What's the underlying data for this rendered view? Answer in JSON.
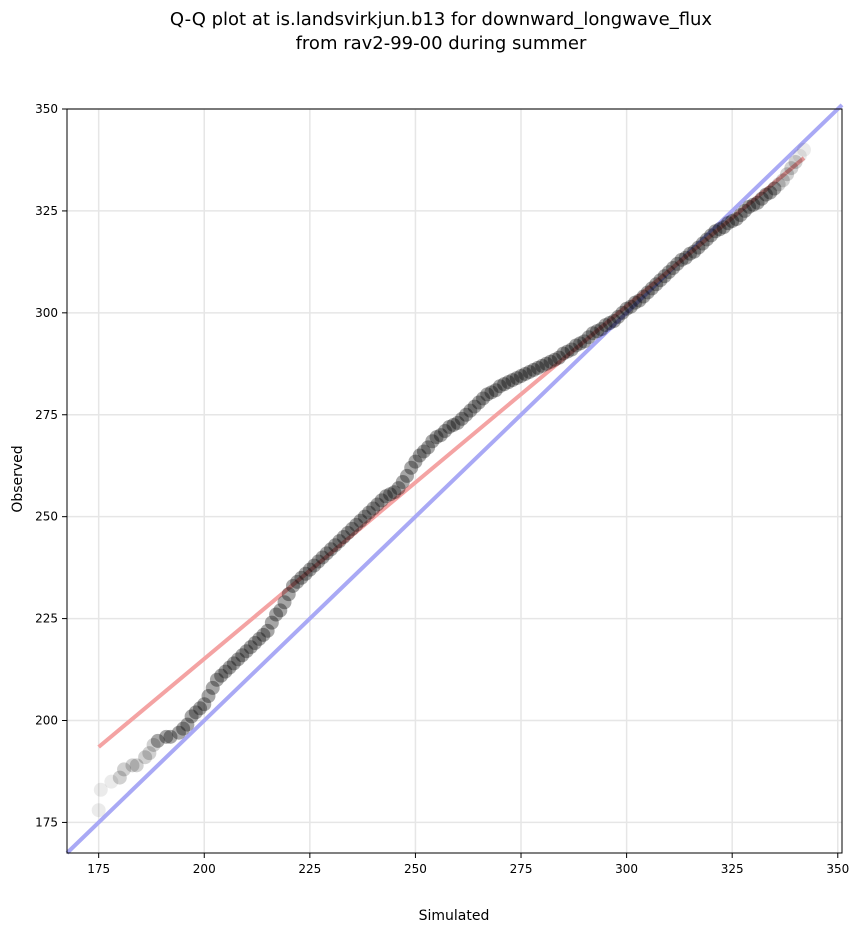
{
  "chart_data": {
    "type": "scatter",
    "title_line1": "Q-Q plot at is.landsvirkjun.b13 for downward_longwave_flux",
    "title_line2": "from rav2-99-00 during summer",
    "xlabel": "Simulated",
    "ylabel": "Observed",
    "xlim": [
      167.5,
      351
    ],
    "ylim": [
      167.5,
      350
    ],
    "xticks": [
      175,
      200,
      225,
      250,
      275,
      300,
      325,
      350
    ],
    "yticks": [
      175,
      200,
      225,
      250,
      275,
      300,
      325,
      350
    ],
    "grid": true,
    "quantile_points": [
      [
        175,
        178
      ],
      [
        175.5,
        183
      ],
      [
        178,
        185
      ],
      [
        180,
        186
      ],
      [
        181,
        188
      ],
      [
        183,
        189
      ],
      [
        184,
        189
      ],
      [
        186,
        191
      ],
      [
        187,
        192
      ],
      [
        188,
        194
      ],
      [
        189,
        195
      ],
      [
        191,
        196
      ],
      [
        192,
        196
      ],
      [
        194,
        197
      ],
      [
        195,
        198
      ],
      [
        196,
        199
      ],
      [
        197,
        201
      ],
      [
        198,
        202
      ],
      [
        199,
        203
      ],
      [
        200,
        204
      ],
      [
        201,
        206
      ],
      [
        202,
        208
      ],
      [
        203,
        210
      ],
      [
        204,
        211
      ],
      [
        205,
        212
      ],
      [
        206,
        213
      ],
      [
        207,
        214
      ],
      [
        208,
        215
      ],
      [
        209,
        216
      ],
      [
        210,
        217
      ],
      [
        211,
        218
      ],
      [
        212,
        219
      ],
      [
        213,
        220
      ],
      [
        214,
        221
      ],
      [
        215,
        222
      ],
      [
        216,
        224
      ],
      [
        217,
        226
      ],
      [
        218,
        227
      ],
      [
        219,
        229
      ],
      [
        220,
        231
      ],
      [
        221,
        233
      ],
      [
        222,
        234
      ],
      [
        223,
        235
      ],
      [
        224,
        236
      ],
      [
        225,
        237
      ],
      [
        226,
        238
      ],
      [
        227,
        239
      ],
      [
        228,
        240
      ],
      [
        229,
        241
      ],
      [
        230,
        242
      ],
      [
        231,
        243
      ],
      [
        232,
        244
      ],
      [
        233,
        245
      ],
      [
        234,
        246
      ],
      [
        235,
        247
      ],
      [
        236,
        248
      ],
      [
        237,
        249
      ],
      [
        238,
        250
      ],
      [
        239,
        251
      ],
      [
        240,
        252
      ],
      [
        241,
        253
      ],
      [
        242,
        254
      ],
      [
        243,
        255
      ],
      [
        244,
        255.5
      ],
      [
        245,
        256
      ],
      [
        246,
        257
      ],
      [
        247,
        258.5
      ],
      [
        248,
        260
      ],
      [
        249,
        262
      ],
      [
        250,
        263.5
      ],
      [
        251,
        265
      ],
      [
        252,
        266
      ],
      [
        253,
        267
      ],
      [
        254,
        268.5
      ],
      [
        255,
        269.5
      ],
      [
        256,
        270
      ],
      [
        257,
        271
      ],
      [
        258,
        272
      ],
      [
        259,
        272.5
      ],
      [
        260,
        273
      ],
      [
        261,
        274
      ],
      [
        262,
        275
      ],
      [
        263,
        276
      ],
      [
        264,
        277
      ],
      [
        265,
        278
      ],
      [
        266,
        279
      ],
      [
        267,
        280
      ],
      [
        268,
        280.5
      ],
      [
        269,
        281
      ],
      [
        270,
        282
      ],
      [
        271,
        282.5
      ],
      [
        272,
        283
      ],
      [
        273,
        283.5
      ],
      [
        274,
        284
      ],
      [
        275,
        284.5
      ],
      [
        276,
        285
      ],
      [
        277,
        285.5
      ],
      [
        278,
        286
      ],
      [
        279,
        286.5
      ],
      [
        280,
        287
      ],
      [
        281,
        287.5
      ],
      [
        282,
        288
      ],
      [
        283,
        288.5
      ],
      [
        284,
        289
      ],
      [
        285,
        290
      ],
      [
        286,
        290.5
      ],
      [
        287,
        291
      ],
      [
        288,
        292
      ],
      [
        289,
        292.5
      ],
      [
        290,
        293
      ],
      [
        291,
        294
      ],
      [
        292,
        295
      ],
      [
        293,
        295.5
      ],
      [
        294,
        296
      ],
      [
        295,
        297
      ],
      [
        296,
        297.5
      ],
      [
        297,
        298
      ],
      [
        298,
        299
      ],
      [
        299,
        300
      ],
      [
        300,
        301
      ],
      [
        301,
        301.5
      ],
      [
        302,
        302.5
      ],
      [
        303,
        303
      ],
      [
        304,
        304
      ],
      [
        305,
        305
      ],
      [
        306,
        306
      ],
      [
        307,
        307
      ],
      [
        308,
        308
      ],
      [
        309,
        309
      ],
      [
        310,
        310
      ],
      [
        311,
        311
      ],
      [
        312,
        312
      ],
      [
        313,
        313
      ],
      [
        314,
        313.5
      ],
      [
        315,
        314.5
      ],
      [
        316,
        315
      ],
      [
        317,
        316
      ],
      [
        318,
        317
      ],
      [
        319,
        318
      ],
      [
        320,
        319
      ],
      [
        321,
        320
      ],
      [
        322,
        320.5
      ],
      [
        323,
        321
      ],
      [
        324,
        322
      ],
      [
        325,
        322.5
      ],
      [
        326,
        323
      ],
      [
        327,
        324
      ],
      [
        328,
        325
      ],
      [
        329,
        326
      ],
      [
        330,
        326.5
      ],
      [
        331,
        327
      ],
      [
        332,
        328
      ],
      [
        333,
        329
      ],
      [
        334,
        329.5
      ],
      [
        335,
        330.5
      ],
      [
        336,
        331.5
      ],
      [
        337,
        332.5
      ],
      [
        338,
        334
      ],
      [
        339,
        335.5
      ],
      [
        340,
        337
      ],
      [
        341,
        338.5
      ],
      [
        342,
        340
      ]
    ],
    "fit_line": {
      "x": [
        175,
        342
      ],
      "y": [
        193.5,
        338
      ],
      "color": "#f4a3a3"
    },
    "identity_line": {
      "x": [
        167.5,
        351
      ],
      "y": [
        167.5,
        351
      ],
      "color": "#a9a9f5"
    },
    "point_color": "#000000"
  }
}
